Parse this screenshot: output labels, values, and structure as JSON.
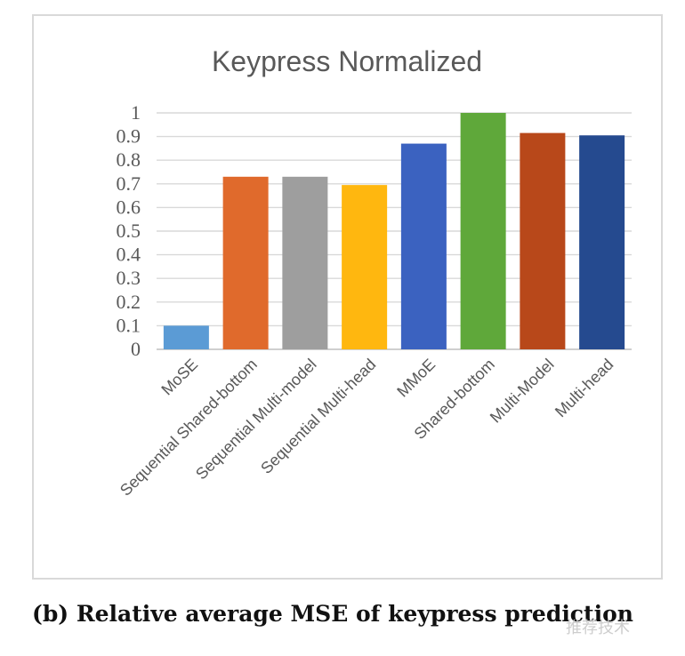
{
  "chart_data": {
    "type": "bar",
    "title": "Keypress Normalized",
    "categories": [
      "MoSE",
      "Sequential Shared-bottom",
      "Sequential Multi-model",
      "Sequential Multi-head",
      "MMoE",
      "Shared-bottom",
      "Multi-Model",
      "Multi-head"
    ],
    "values": [
      0.1,
      0.73,
      0.73,
      0.695,
      0.87,
      1.0,
      0.915,
      0.905
    ],
    "colors": [
      "#5b9bd5",
      "#e06a2c",
      "#9e9e9e",
      "#ffb70f",
      "#3b62c0",
      "#5fa83a",
      "#b8481a",
      "#254a8f"
    ],
    "ylim": [
      0,
      1
    ],
    "yticks": [
      "0",
      "0.1",
      "0.2",
      "0.3",
      "0.4",
      "0.5",
      "0.6",
      "0.7",
      "0.8",
      "0.9",
      "1"
    ],
    "grid": true,
    "xlabel": "",
    "ylabel": ""
  },
  "caption": "(b) Relative average MSE of keypress prediction",
  "watermark": "推荐技术"
}
